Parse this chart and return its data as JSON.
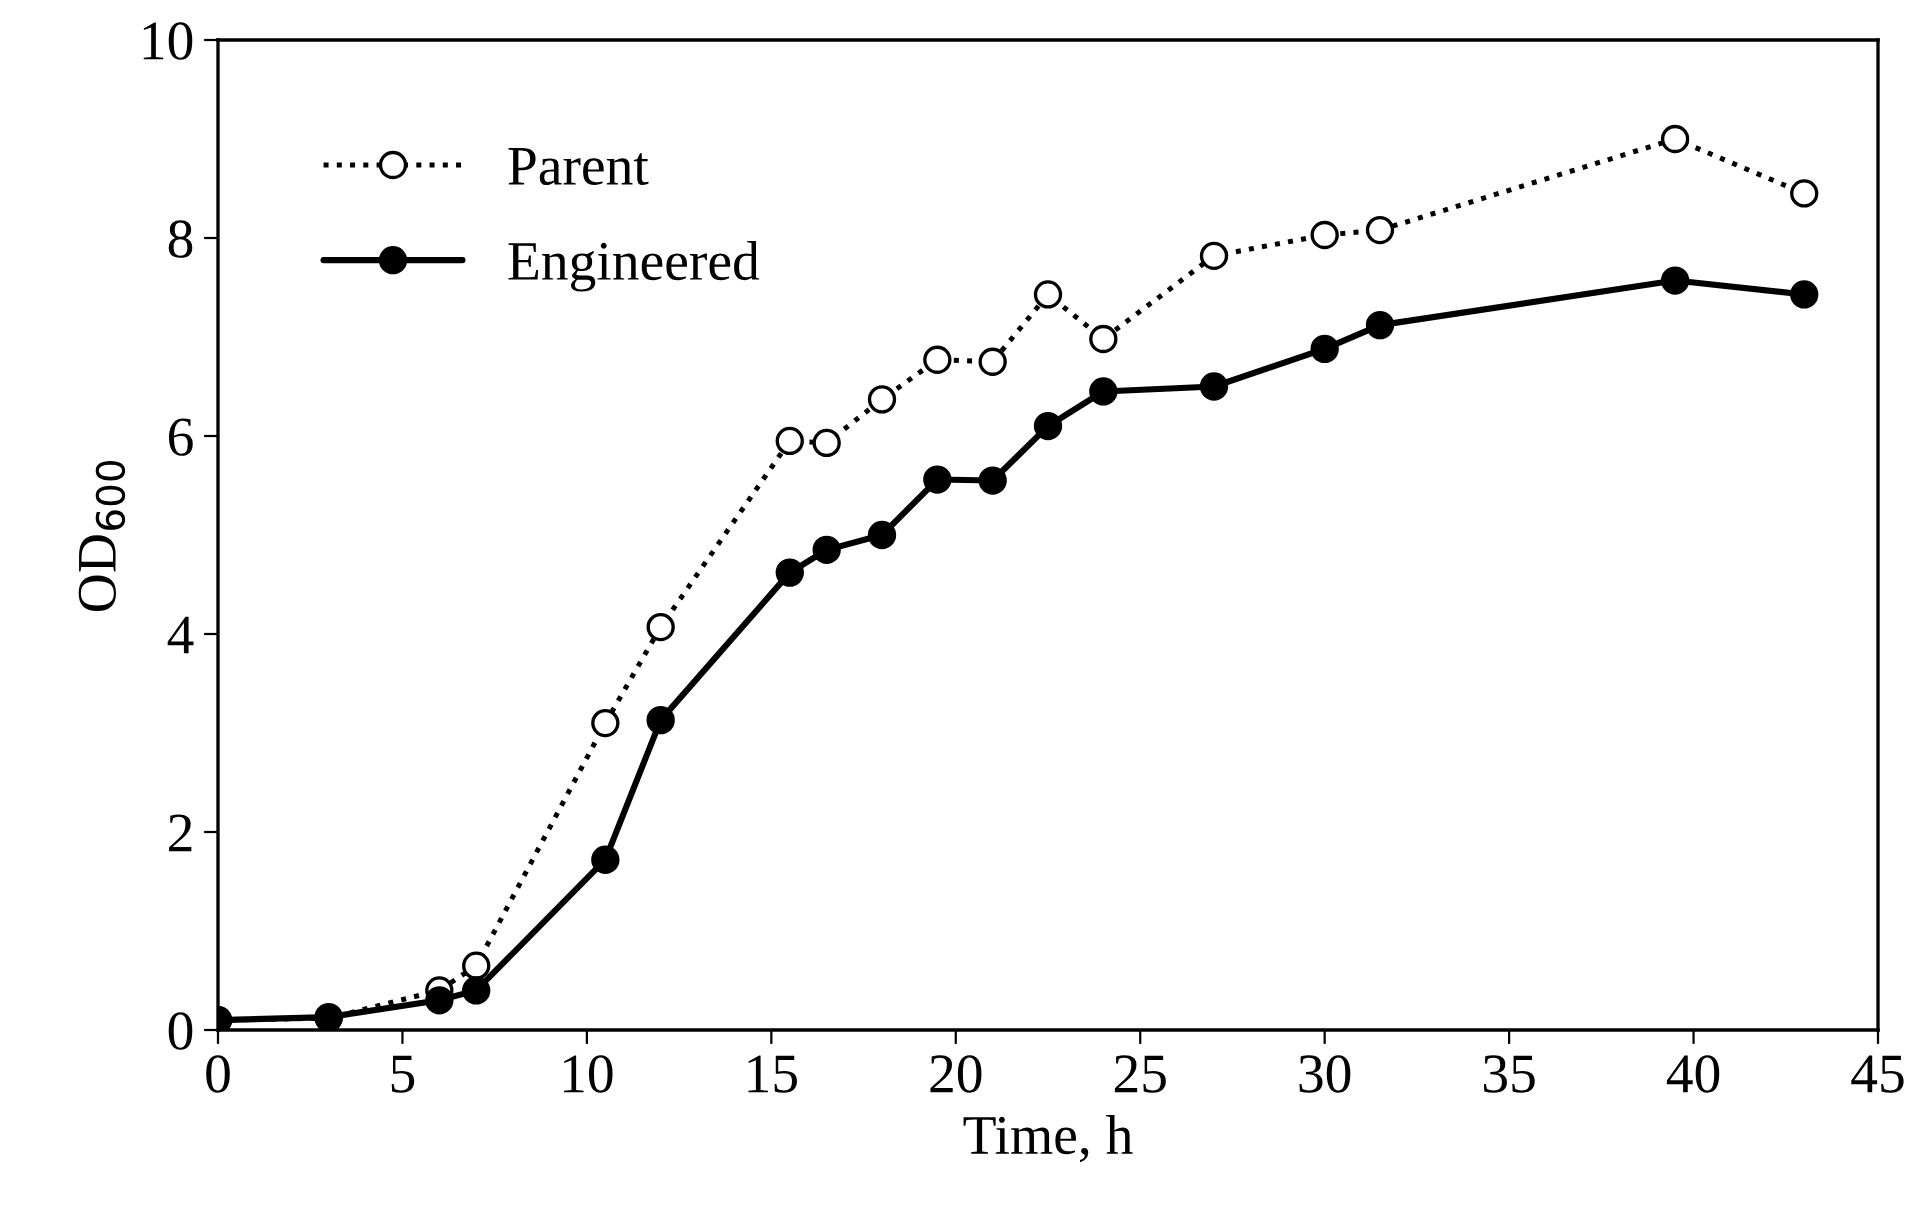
{
  "chart_data": {
    "type": "line",
    "xlabel": "Time, h",
    "ylabel": "OD$_{600}$",
    "x": [
      0,
      3,
      6,
      7,
      10.5,
      12,
      15.5,
      16.5,
      18,
      19.5,
      21,
      22.5,
      24,
      27,
      30,
      31.5,
      39.5,
      43
    ],
    "series": [
      {
        "name": "Parent",
        "color": "#000000",
        "line_style": "dotted",
        "marker": "circle",
        "values": [
          0.1,
          0.12,
          0.4,
          0.65,
          3.1,
          4.07,
          5.95,
          5.93,
          6.37,
          6.77,
          6.75,
          7.43,
          6.98,
          7.82,
          8.03,
          8.08,
          9.0,
          8.45
        ]
      },
      {
        "name": "Engineered",
        "color": "#000000",
        "line_style": "solid",
        "marker": "circle",
        "values": [
          0.1,
          0.13,
          0.3,
          0.4,
          1.72,
          3.13,
          4.62,
          4.85,
          5.0,
          5.56,
          5.55,
          6.1,
          6.45,
          6.5,
          6.88,
          7.12,
          7.57,
          7.43
        ]
      }
    ],
    "xlim": [
      0,
      45
    ],
    "xticks": [
      0,
      5,
      10,
      15,
      20,
      25,
      30,
      35,
      40,
      45
    ],
    "ylim": [
      0,
      10
    ],
    "yticks": [
      0,
      2,
      4,
      6,
      8,
      10
    ],
    "grid": false,
    "legend": "top left"
  }
}
